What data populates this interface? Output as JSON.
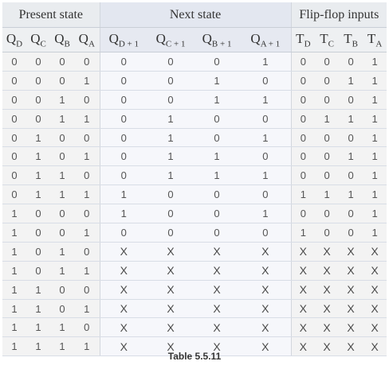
{
  "groups": {
    "present": "Present state",
    "next": "Next state",
    "ff": "Flip-flop inputs"
  },
  "columns": [
    {
      "base": "Q",
      "sub": "D"
    },
    {
      "base": "Q",
      "sub": "C"
    },
    {
      "base": "Q",
      "sub": "B"
    },
    {
      "base": "Q",
      "sub": "A"
    },
    {
      "base": "Q",
      "sub": "D + 1"
    },
    {
      "base": "Q",
      "sub": "C + 1"
    },
    {
      "base": "Q",
      "sub": "B + 1"
    },
    {
      "base": "Q",
      "sub": "A + 1"
    },
    {
      "base": "T",
      "sub": "D"
    },
    {
      "base": "T",
      "sub": "C"
    },
    {
      "base": "T",
      "sub": "B"
    },
    {
      "base": "T",
      "sub": "A"
    }
  ],
  "rows": [
    [
      "0",
      "0",
      "0",
      "0",
      "0",
      "0",
      "0",
      "1",
      "0",
      "0",
      "0",
      "1"
    ],
    [
      "0",
      "0",
      "0",
      "1",
      "0",
      "0",
      "1",
      "0",
      "0",
      "0",
      "1",
      "1"
    ],
    [
      "0",
      "0",
      "1",
      "0",
      "0",
      "0",
      "1",
      "1",
      "0",
      "0",
      "0",
      "1"
    ],
    [
      "0",
      "0",
      "1",
      "1",
      "0",
      "1",
      "0",
      "0",
      "0",
      "1",
      "1",
      "1"
    ],
    [
      "0",
      "1",
      "0",
      "0",
      "0",
      "1",
      "0",
      "1",
      "0",
      "0",
      "0",
      "1"
    ],
    [
      "0",
      "1",
      "0",
      "1",
      "0",
      "1",
      "1",
      "0",
      "0",
      "0",
      "1",
      "1"
    ],
    [
      "0",
      "1",
      "1",
      "0",
      "0",
      "1",
      "1",
      "1",
      "0",
      "0",
      "0",
      "1"
    ],
    [
      "0",
      "1",
      "1",
      "1",
      "1",
      "0",
      "0",
      "0",
      "1",
      "1",
      "1",
      "1"
    ],
    [
      "1",
      "0",
      "0",
      "0",
      "1",
      "0",
      "0",
      "1",
      "0",
      "0",
      "0",
      "1"
    ],
    [
      "1",
      "0",
      "0",
      "1",
      "0",
      "0",
      "0",
      "0",
      "1",
      "0",
      "0",
      "1"
    ],
    [
      "1",
      "0",
      "1",
      "0",
      "X",
      "X",
      "X",
      "X",
      "X",
      "X",
      "X",
      "X"
    ],
    [
      "1",
      "0",
      "1",
      "1",
      "X",
      "X",
      "X",
      "X",
      "X",
      "X",
      "X",
      "X"
    ],
    [
      "1",
      "1",
      "0",
      "0",
      "X",
      "X",
      "X",
      "X",
      "X",
      "X",
      "X",
      "X"
    ],
    [
      "1",
      "1",
      "0",
      "1",
      "X",
      "X",
      "X",
      "X",
      "X",
      "X",
      "X",
      "X"
    ],
    [
      "1",
      "1",
      "1",
      "0",
      "X",
      "X",
      "X",
      "X",
      "X",
      "X",
      "X",
      "X"
    ],
    [
      "1",
      "1",
      "1",
      "1",
      "X",
      "X",
      "X",
      "X",
      "X",
      "X",
      "X",
      "X"
    ]
  ],
  "caption": "Table 5.5.11"
}
